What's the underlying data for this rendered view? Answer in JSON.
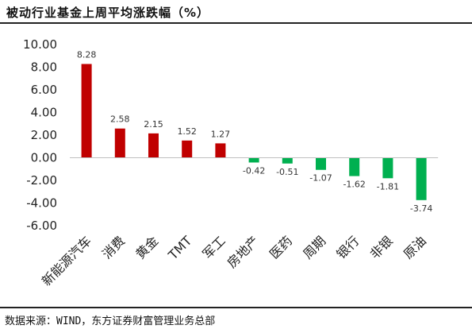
{
  "title": "被动行业基金上周平均涨跌幅（%）",
  "source": "数据来源：WIND，东方证券财富管理业务总部",
  "colors": {
    "positive": "#c00000",
    "negative": "#00b050",
    "axis_text": "#222222",
    "label_text": "#333333"
  },
  "chart_data": {
    "type": "bar",
    "title": "被动行业基金上周平均涨跌幅（%）",
    "xlabel": "",
    "ylabel": "",
    "ylim": [
      -6,
      10
    ],
    "yticks": [
      "10.00",
      "8.00",
      "6.00",
      "4.00",
      "2.00",
      "0.00",
      "-2.00",
      "-4.00",
      "-6.00"
    ],
    "ytick_values": [
      10,
      8,
      6,
      4,
      2,
      0,
      -2,
      -4,
      -6
    ],
    "grid": false,
    "legend": "none",
    "categories": [
      "新能源汽车",
      "消费",
      "黄金",
      "TMT",
      "军工",
      "房地产",
      "医药",
      "周期",
      "银行",
      "非银",
      "原油"
    ],
    "values": [
      8.28,
      2.58,
      2.15,
      1.52,
      1.27,
      -0.42,
      -0.51,
      -1.07,
      -1.62,
      -1.81,
      -3.74
    ],
    "value_labels": [
      "8.28",
      "2.58",
      "2.15",
      "1.52",
      "1.27",
      "-0.42",
      "-0.51",
      "-1.07",
      "-1.62",
      "-1.81",
      "-3.74"
    ]
  }
}
